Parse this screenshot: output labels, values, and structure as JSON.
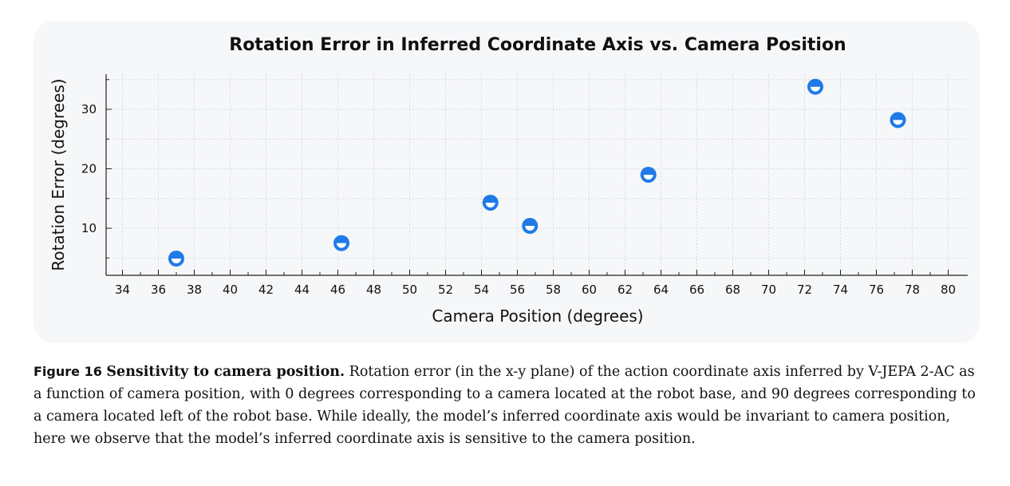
{
  "chart_data": {
    "type": "scatter",
    "title": "Rotation Error in Inferred Coordinate Axis vs. Camera Position",
    "xlabel": "Camera Position (degrees)",
    "ylabel": "Rotation Error (degrees)",
    "xlim": [
      33,
      81
    ],
    "ylim": [
      2,
      36
    ],
    "xticks": [
      "34",
      "36",
      "38",
      "40",
      "42",
      "44",
      "46",
      "48",
      "50",
      "52",
      "54",
      "56",
      "58",
      "60",
      "62",
      "64",
      "66",
      "68",
      "70",
      "72",
      "74",
      "76",
      "78",
      "80"
    ],
    "yticks": [
      "10",
      "20",
      "30"
    ],
    "grid": true,
    "marker_color": "#1f7ae8",
    "points": [
      {
        "x": 37.0,
        "y": 4.9
      },
      {
        "x": 46.2,
        "y": 7.5
      },
      {
        "x": 54.5,
        "y": 14.3
      },
      {
        "x": 56.7,
        "y": 10.4
      },
      {
        "x": 63.3,
        "y": 19.0
      },
      {
        "x": 72.6,
        "y": 33.8
      },
      {
        "x": 77.2,
        "y": 28.2
      }
    ]
  },
  "caption": {
    "number": "Figure 16",
    "title": "Sensitivity to camera position.",
    "text": " Rotation error (in the x-y plane) of the action coordinate axis inferred by V-JEPA 2-AC as a function of camera position, with 0 degrees corresponding to a camera located at the robot base, and 90 degrees corresponding to a camera located left of the robot base. While ideally, the model’s inferred coordinate axis would be invariant to camera position, here we observe that the model’s inferred coordinate axis is sensitive to the camera position."
  }
}
